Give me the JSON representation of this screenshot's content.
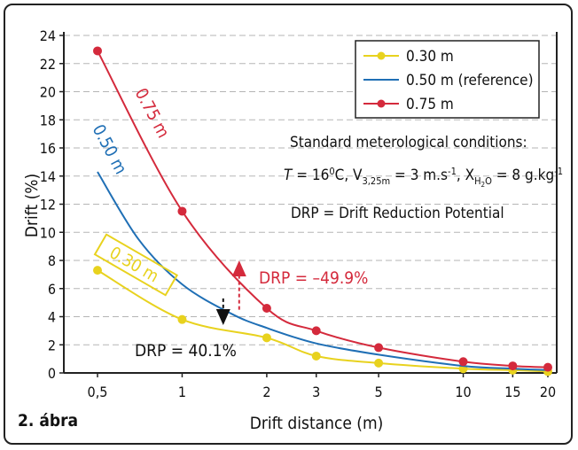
{
  "chart_data": {
    "type": "line",
    "figure_label": "2. ábra",
    "xlabel": "Drift distance (m)",
    "ylabel": "Drift (%)",
    "x_ticks": [
      0.5,
      1,
      2,
      3,
      5,
      10,
      15,
      20
    ],
    "x_tick_labels": [
      "0,5",
      "1",
      "2",
      "3",
      "5",
      "10",
      "15",
      "20"
    ],
    "x_scale": "log",
    "ylim": [
      0,
      24
    ],
    "y_ticks": [
      0,
      2,
      4,
      6,
      8,
      10,
      12,
      14,
      16,
      18,
      20,
      22,
      24
    ],
    "grid": "horizontal dashed",
    "legend_position": "top-right",
    "series": [
      {
        "name": "0.30 m",
        "color": "#e8d21e",
        "markers": true,
        "x": [
          0.5,
          1,
          2,
          3,
          5,
          10,
          15,
          20
        ],
        "y": [
          7.3,
          3.8,
          2.5,
          1.2,
          0.7,
          0.3,
          0.2,
          0.1
        ]
      },
      {
        "name": "0.50 m (reference)",
        "color": "#1f6fb5",
        "markers": false,
        "x": [
          0.5,
          0.7,
          1,
          1.5,
          2,
          3,
          5,
          10,
          15,
          20
        ],
        "y": [
          14.3,
          9.5,
          6.3,
          4.2,
          3.2,
          2.1,
          1.3,
          0.5,
          0.3,
          0.2
        ]
      },
      {
        "name": "0.75 m",
        "color": "#d42a3c",
        "markers": true,
        "x": [
          0.5,
          1,
          2,
          3,
          5,
          10,
          15,
          20
        ],
        "y": [
          22.9,
          11.5,
          4.6,
          3.0,
          1.8,
          0.8,
          0.5,
          0.4
        ]
      }
    ],
    "curve_labels": [
      {
        "text": "0.75 m",
        "color": "#d42a3c"
      },
      {
        "text": "0.50 m",
        "color": "#1f6fb5"
      },
      {
        "text": "0.30 m",
        "color": "#e8d21e"
      }
    ],
    "annotations": {
      "conditions_title": "Standard meterological conditions:",
      "drp_definition": "DRP = Drift Reduction Potential",
      "drp_red": "DRP = –49.9%",
      "drp_black": "DRP = 40.1%",
      "arrow_x": 1.4,
      "red_arrow_from": 4.5,
      "red_arrow_to": 8.0,
      "black_arrow_from": 5.3,
      "black_arrow_to": 3.4
    }
  }
}
